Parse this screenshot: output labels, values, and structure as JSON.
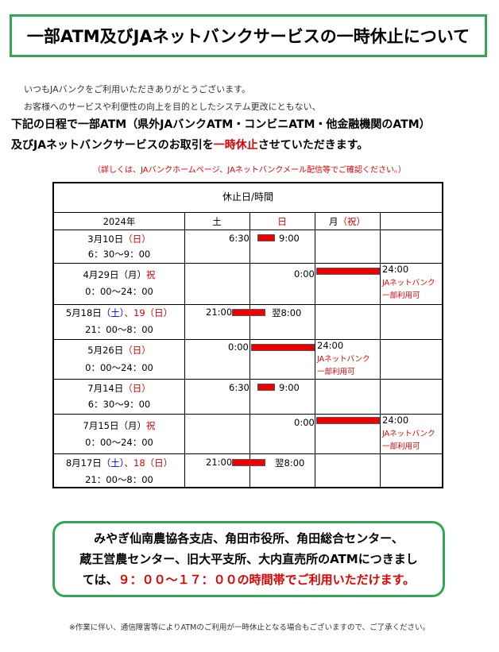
{
  "title": "一部ATM及びJAネットバンクサービスの一時休止について",
  "intro": {
    "line1": "いつもJAバンクをご利用いただきありがとうございます。",
    "line2": "お客様へのサービスや利便性の向上を目的としたシステム更改にともない、"
  },
  "main": {
    "line1": "下記の日程で一部ATM（県外JAバンクATM・コンビニATM・他金融機関のATM）",
    "line2_a": "及びJAネットバンクサービスのお取引を",
    "line2_red": "一時休止",
    "line2_b": "させていただきます。"
  },
  "note": "（詳しくは、JAバンクホームページ、JAネットバンクメール配信等でご確認ください。）",
  "table": {
    "header": "休止日/時間",
    "col_year": "2024年",
    "col_sat": "土",
    "col_sun": "日",
    "col_mon_a": "月",
    "col_mon_b": "（祝）",
    "rows": [
      {
        "d1": "3月10日",
        "d2": "（日）",
        "d3": "",
        "time": "6：30～9：00",
        "start": "6:30",
        "end": "9:00",
        "sub1": "",
        "sub2": ""
      },
      {
        "d1": "4月29日（月）",
        "d2": "祝",
        "d3": "",
        "time": "0：00～24：00",
        "start": "0:00",
        "end": "24:00",
        "sub1": "JAネットバンク",
        "sub2": "一部利用可"
      },
      {
        "d1": "5月18日",
        "d2": "（土）",
        "d3": "、19（日）",
        "time": "21：00～8：00",
        "start": "21:00",
        "end": "翌8:00",
        "sub1": "",
        "sub2": ""
      },
      {
        "d1": "5月26日",
        "d2": "（日）",
        "d3": "",
        "time": "0：00～24：00",
        "start": "0:00",
        "end": "24:00",
        "sub1": "JAネットバンク",
        "sub2": "一部利用可"
      },
      {
        "d1": "7月14日",
        "d2": "（日）",
        "d3": "",
        "time": "6：30～9：00",
        "start": "6:30",
        "end": "9:00",
        "sub1": "",
        "sub2": ""
      },
      {
        "d1": "7月15日（月）",
        "d2": "祝",
        "d3": "",
        "time": "0：00～24：00",
        "start": "0:00",
        "end": "24:00",
        "sub1": "JAネットバンク",
        "sub2": "一部利用可"
      },
      {
        "d1": "8月17日",
        "d2": "（土）",
        "d3": "、18（日）",
        "time": "21：00～8：00",
        "start": "21:00",
        "end": "翌8:00",
        "sub1": "",
        "sub2": ""
      }
    ]
  },
  "info": {
    "line1": "みやぎ仙南農協各支店、角田市役所、角田総合センター、",
    "line2": "蔵王営農センター、旧大平支所、大内直売所のATMにつきまし",
    "line3_a": "ては、",
    "line3_red": "９：００～１７：００の時間帯でご利用いただけます。"
  },
  "footer": "※作業に伴い、通信障害等によりATMのご利用が一時休止となる場合もございますので、ご了承ください。"
}
